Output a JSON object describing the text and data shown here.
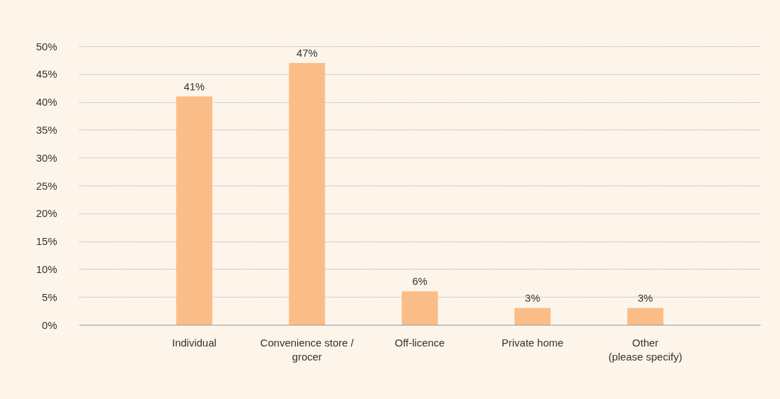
{
  "chart_data": {
    "type": "bar",
    "categories": [
      "Individual",
      "Convenience store /\ngrocer",
      "Off-licence",
      "Private home",
      "Other\n(please specify)"
    ],
    "values": [
      41,
      47,
      6,
      3,
      3
    ],
    "color": "#fbbd87",
    "ylim": [
      0,
      50
    ],
    "yticks": [
      {
        "value": 0,
        "label": "0%"
      },
      {
        "value": 5,
        "label": "5%"
      },
      {
        "value": 10,
        "label": "10%"
      },
      {
        "value": 15,
        "label": "15%"
      },
      {
        "value": 20,
        "label": "20%"
      },
      {
        "value": 25,
        "label": "25%"
      },
      {
        "value": 30,
        "label": "30%"
      },
      {
        "value": 35,
        "label": "35%"
      },
      {
        "value": 40,
        "label": "40%"
      },
      {
        "value": 45,
        "label": "45%"
      },
      {
        "value": 50,
        "label": "50%"
      }
    ],
    "value_labels": [
      "41%",
      "47%",
      "6%",
      "3%",
      "3%"
    ],
    "grid": "y"
  }
}
